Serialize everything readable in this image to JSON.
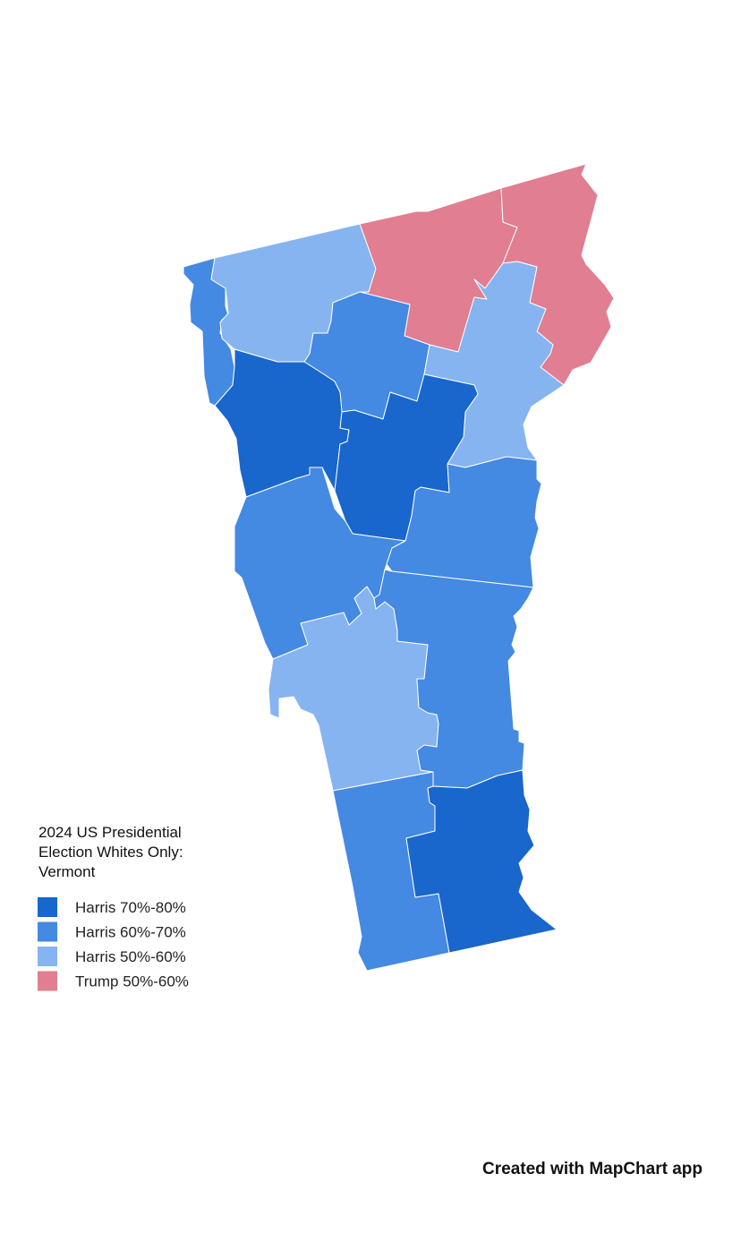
{
  "legend": {
    "title": [
      "2024 US Presidential",
      "Election Whites Only:",
      "Vermont"
    ],
    "items": [
      {
        "label": "Harris 70%-80%",
        "color": "#1966cc"
      },
      {
        "label": "Harris 60%-70%",
        "color": "#4489e2"
      },
      {
        "label": "Harris 50%-60%",
        "color": "#86b4f1"
      },
      {
        "label": "Trump 50%-60%",
        "color": "#e17e91"
      }
    ]
  },
  "credit": "Created with MapChart app"
}
